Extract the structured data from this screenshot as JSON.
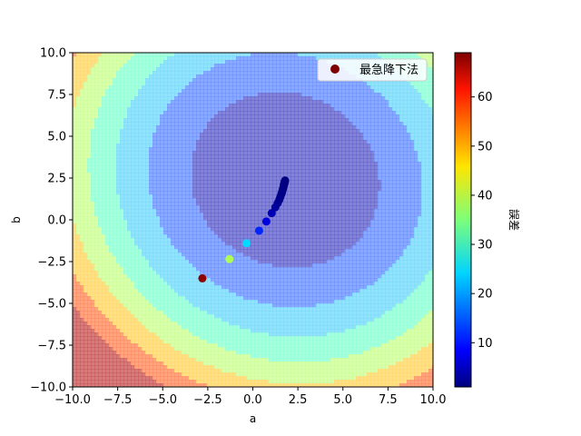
{
  "chart_data": {
    "type": "scatter",
    "title": "",
    "xlabel": "a",
    "ylabel": "b",
    "xlim": [
      -10,
      10
    ],
    "ylim": [
      -10,
      10
    ],
    "xticks": [
      -10,
      -7.5,
      -5,
      -2.5,
      0,
      2.5,
      5,
      7.5,
      10
    ],
    "yticks": [
      -10,
      -7.5,
      -5,
      -2.5,
      0,
      2.5,
      5,
      7.5,
      10
    ],
    "xtick_labels": [
      "−10.0",
      "−7.5",
      "−5.0",
      "−2.5",
      "0.0",
      "2.5",
      "5.0",
      "7.5",
      "10.0"
    ],
    "ytick_labels": [
      "−10.0",
      "−7.5",
      "−5.0",
      "−2.5",
      "0.0",
      "2.5",
      "5.0",
      "7.5",
      "10.0"
    ],
    "grid": false,
    "legend": {
      "entries": [
        "最急降下法"
      ],
      "placement": "top-right"
    },
    "colorbar": {
      "label": "誤差",
      "range": [
        1,
        69
      ],
      "ticks": [
        10,
        20,
        30,
        40,
        50,
        60
      ],
      "tick_labels": [
        "10",
        "20",
        "30",
        "40",
        "50",
        "60"
      ],
      "colormap": "jet"
    },
    "contour": {
      "center": [
        1.8,
        2.4
      ],
      "a_coef": 0.33,
      "b_coef": 0.33,
      "cross_coef": 0.05,
      "min_error": 1,
      "levels": [
        0,
        10,
        20,
        30,
        40,
        50,
        60,
        70
      ],
      "band_colors": [
        "#1f1fb5",
        "#2b62ff",
        "#3ccbf5",
        "#5effc2",
        "#b8ff6a",
        "#ffc62a",
        "#ff5a1a",
        "#b01010"
      ],
      "alpha": 0.55
    },
    "series": [
      {
        "name": "最急降下法",
        "points": [
          {
            "x": -2.8,
            "y": -3.5,
            "error": 68
          },
          {
            "x": -1.3,
            "y": -2.35,
            "error": 38
          },
          {
            "x": -0.35,
            "y": -1.4,
            "error": 24
          },
          {
            "x": 0.35,
            "y": -0.65,
            "error": 12
          },
          {
            "x": 0.75,
            "y": -0.1,
            "error": 7
          },
          {
            "x": 1.05,
            "y": 0.4,
            "error": 4.5
          },
          {
            "x": 1.25,
            "y": 0.75,
            "error": 3
          },
          {
            "x": 1.38,
            "y": 1.0,
            "error": 2.4
          },
          {
            "x": 1.47,
            "y": 1.2,
            "error": 2
          },
          {
            "x": 1.53,
            "y": 1.37,
            "error": 1.8
          },
          {
            "x": 1.58,
            "y": 1.52,
            "error": 1.6
          },
          {
            "x": 1.62,
            "y": 1.65,
            "error": 1.5
          },
          {
            "x": 1.65,
            "y": 1.77,
            "error": 1.4
          },
          {
            "x": 1.68,
            "y": 1.87,
            "error": 1.3
          },
          {
            "x": 1.7,
            "y": 1.96,
            "error": 1.25
          },
          {
            "x": 1.72,
            "y": 2.04,
            "error": 1.2
          },
          {
            "x": 1.73,
            "y": 2.11,
            "error": 1.15
          },
          {
            "x": 1.75,
            "y": 2.17,
            "error": 1.12
          },
          {
            "x": 1.76,
            "y": 2.22,
            "error": 1.1
          },
          {
            "x": 1.77,
            "y": 2.27,
            "error": 1.08
          },
          {
            "x": 1.78,
            "y": 2.31,
            "error": 1.06
          },
          {
            "x": 1.79,
            "y": 2.35,
            "error": 1.05
          }
        ]
      }
    ]
  }
}
